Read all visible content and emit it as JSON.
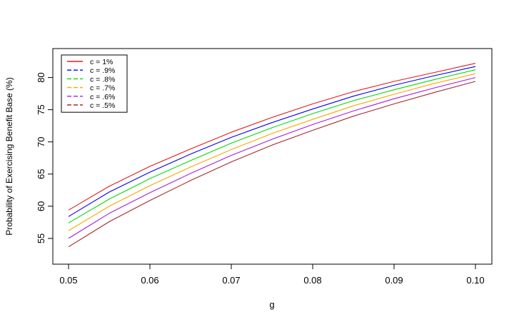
{
  "chart_data": {
    "type": "line",
    "title": "",
    "xlabel": "g",
    "ylabel": "Probability of Exercising Benefit Base (%)",
    "xlim": [
      0.05,
      0.1
    ],
    "ylim": [
      51.0,
      84.5
    ],
    "x_ticks": [
      0.05,
      0.06,
      0.07,
      0.08,
      0.09,
      0.1
    ],
    "x_tick_labels": [
      "0.05",
      "0.06",
      "0.07",
      "0.08",
      "0.09",
      "0.10"
    ],
    "y_ticks": [
      55,
      60,
      65,
      70,
      75,
      80
    ],
    "y_tick_labels": [
      "55",
      "60",
      "65",
      "70",
      "75",
      "80"
    ],
    "grid": false,
    "legend_position": "top-left",
    "x": [
      0.05,
      0.055,
      0.06,
      0.065,
      0.07,
      0.075,
      0.08,
      0.085,
      0.09,
      0.095,
      0.1
    ],
    "series": [
      {
        "name": "c = 1%",
        "color": "#e41a1c",
        "dash": "solid",
        "values": [
          59.4,
          63.1,
          66.2,
          68.9,
          71.5,
          73.8,
          75.9,
          77.8,
          79.4,
          80.8,
          82.2
        ]
      },
      {
        "name": "c = .9%",
        "color": "#0000ff",
        "dash": "dashed",
        "values": [
          58.4,
          62.2,
          65.3,
          68.1,
          70.7,
          73.0,
          75.1,
          77.1,
          78.8,
          80.3,
          81.7
        ]
      },
      {
        "name": "c = .8%",
        "color": "#00dd00",
        "dash": "dashed",
        "values": [
          57.4,
          61.1,
          64.3,
          67.1,
          69.8,
          72.2,
          74.4,
          76.4,
          78.1,
          79.7,
          81.2
        ]
      },
      {
        "name": "c = .7%",
        "color": "#ffa500",
        "dash": "dashed",
        "values": [
          56.2,
          60.0,
          63.2,
          66.1,
          68.8,
          71.3,
          73.5,
          75.6,
          77.4,
          79.1,
          80.6
        ]
      },
      {
        "name": "c = .6%",
        "color": "#a020f0",
        "dash": "dashed",
        "values": [
          55.0,
          58.9,
          62.1,
          65.1,
          67.9,
          70.4,
          72.7,
          74.8,
          76.7,
          78.4,
          80.0
        ]
      },
      {
        "name": "c = .5%",
        "color": "#a52a2a",
        "dash": "dashed",
        "values": [
          53.7,
          57.6,
          60.9,
          64.0,
          66.9,
          69.5,
          71.8,
          74.0,
          75.9,
          77.7,
          79.4
        ]
      }
    ]
  }
}
